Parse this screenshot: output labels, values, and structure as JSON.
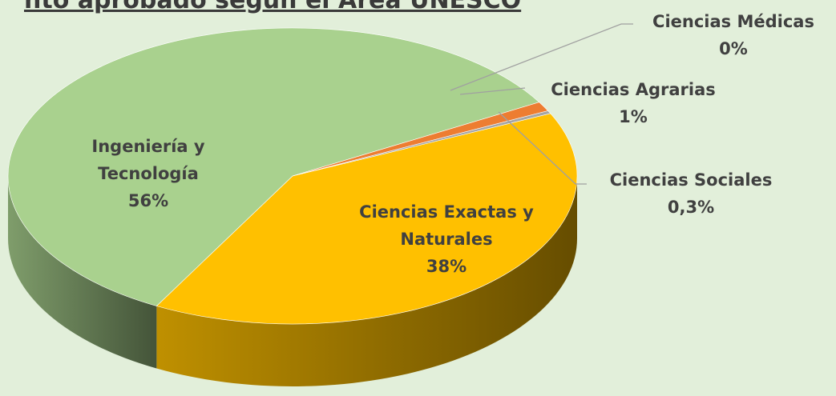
{
  "chart_data": {
    "type": "pie",
    "title": "nto aprobado según el Área UNESCO",
    "categories": [
      "Ciencias Exactas y Naturales",
      "Ingeniería y Tecnología",
      "Ciencias Médicas",
      "Ciencias Agrarias",
      "Ciencias Sociales"
    ],
    "values": [
      38,
      56,
      0,
      1,
      0.3
    ],
    "value_labels": [
      "38%",
      "56%",
      "0%",
      "1%",
      "0,3%"
    ],
    "colors": [
      "#ffc000",
      "#a9d18e",
      "#5b9bd5",
      "#ed7d31",
      "#a5a5a5"
    ]
  }
}
